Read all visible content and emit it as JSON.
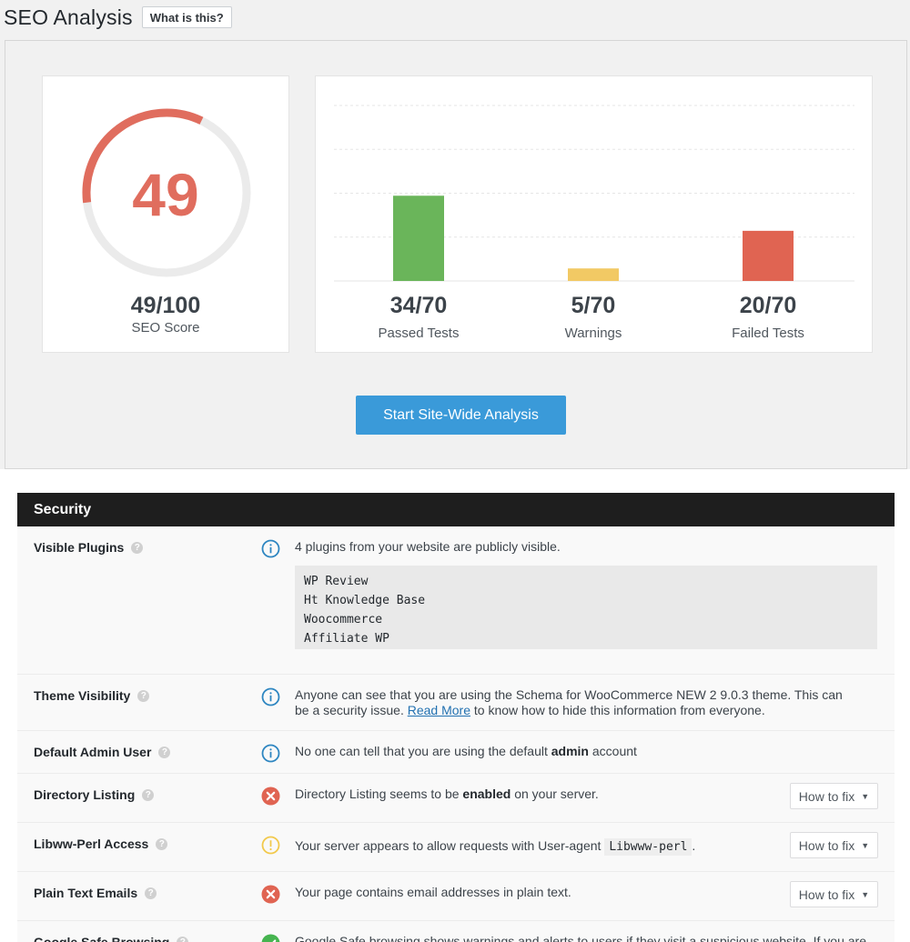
{
  "header": {
    "title": "SEO Analysis",
    "help_label": "What is this?"
  },
  "score": {
    "value": "49",
    "fraction": "49/100",
    "label": "SEO Score",
    "percent": 49,
    "color": "#e06d5e",
    "track_color": "#ebebeb"
  },
  "chart_data": {
    "type": "bar",
    "categories": [
      "Passed Tests",
      "Warnings",
      "Failed Tests"
    ],
    "values": [
      34,
      5,
      20
    ],
    "ylim": [
      0,
      70
    ],
    "grid": true,
    "colors": [
      "#6ab55a",
      "#f2c964",
      "#e06452"
    ],
    "value_labels": [
      "34/70",
      "5/70",
      "20/70"
    ]
  },
  "cta": {
    "label": "Start Site-Wide Analysis"
  },
  "section": {
    "title": "Security"
  },
  "rows": [
    {
      "name": "Visible Plugins",
      "status": "info",
      "message": "4 plugins from your website are publicly visible.",
      "plugins": [
        "WP Review",
        "Ht Knowledge Base",
        "Woocommerce",
        "Affiliate WP"
      ]
    },
    {
      "name": "Theme Visibility",
      "status": "info",
      "message_pre": "Anyone can see that you are using the Schema for WooCommerce NEW 2 9.0.3 theme. This can be a security issue. ",
      "link": "Read More",
      "message_post": " to know how to hide this information from everyone."
    },
    {
      "name": "Default Admin User",
      "status": "info",
      "message_pre": "No one can tell that you are using the default ",
      "bold": "admin",
      "message_post": " account"
    },
    {
      "name": "Directory Listing",
      "status": "fail",
      "message_pre": "Directory Listing seems to be ",
      "bold": "enabled",
      "message_post": " on your server.",
      "fix_label": "How to fix"
    },
    {
      "name": "Libww-Perl Access",
      "status": "warning",
      "message_pre": "Your server appears to allow requests with User-agent ",
      "code": "Libwww-perl",
      "message_post": ".",
      "fix_label": "How to fix"
    },
    {
      "name": "Plain Text Emails",
      "status": "fail",
      "message": "Your page contains email addresses in plain text.",
      "fix_label": "How to fix"
    },
    {
      "name": "Google Safe Browsing",
      "status": "pass",
      "message": "Google Safe browsing shows warnings and alerts to users if they visit a suspicious website. If you are"
    }
  ],
  "help_glyph": "?",
  "fix_caret": "▼",
  "status_colors": {
    "info": "#2e86c1",
    "fail": "#e06452",
    "warning": "#f2c94c",
    "pass": "#46b450"
  }
}
